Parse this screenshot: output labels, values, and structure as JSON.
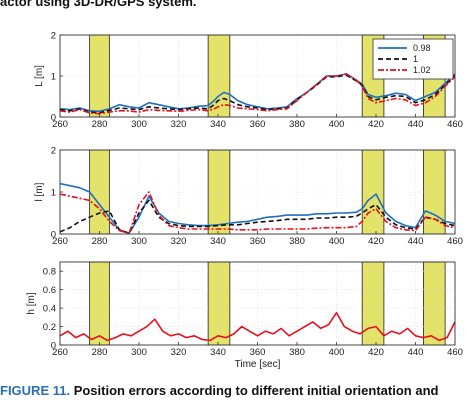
{
  "caption_top": "actor using 3D-DR/GPS system.",
  "caption_bottom": {
    "figure": "FIGURE 11.",
    "text": " Position errors according to different initial orientation and"
  },
  "colors": {
    "series_098": "#1f6fc0",
    "series_1": "#111111",
    "series_102": "#e8101a",
    "highlight_fill": "#e3e36a",
    "highlight_stroke": "#222222",
    "grid": "#d8d8d8"
  },
  "chart_data": [
    {
      "type": "line",
      "ylabel": "L [m]",
      "xlabel": "",
      "xlim": [
        260,
        460
      ],
      "ylim": [
        0,
        2
      ],
      "xticks": [
        "260",
        "280",
        "300",
        "320",
        "340",
        "360",
        "380",
        "400",
        "420",
        "440",
        "460"
      ],
      "yticks": [
        "0",
        "1",
        "2"
      ],
      "highlight_intervals": [
        [
          275,
          285
        ],
        [
          335,
          346
        ],
        [
          413,
          424
        ],
        [
          444,
          455
        ]
      ],
      "legend": {
        "position": "top-right",
        "entries": [
          "0.98",
          "1",
          "1.02"
        ]
      },
      "series": [
        {
          "name": "0.98",
          "style": "solid",
          "x": [
            260,
            265,
            270,
            275,
            280,
            285,
            290,
            295,
            300,
            305,
            310,
            315,
            320,
            325,
            330,
            335,
            338,
            340,
            343,
            346,
            350,
            355,
            360,
            365,
            370,
            375,
            380,
            385,
            390,
            395,
            400,
            405,
            410,
            413,
            416,
            420,
            425,
            430,
            435,
            440,
            445,
            450,
            455,
            460
          ],
          "y": [
            0.2,
            0.18,
            0.22,
            0.15,
            0.14,
            0.2,
            0.3,
            0.25,
            0.22,
            0.35,
            0.3,
            0.25,
            0.2,
            0.22,
            0.26,
            0.28,
            0.4,
            0.5,
            0.6,
            0.55,
            0.4,
            0.3,
            0.25,
            0.2,
            0.22,
            0.25,
            0.45,
            0.6,
            0.8,
            1.0,
            1.0,
            1.05,
            0.9,
            0.8,
            0.55,
            0.48,
            0.52,
            0.58,
            0.55,
            0.4,
            0.5,
            0.6,
            0.82,
            1.05
          ]
        },
        {
          "name": "1",
          "style": "dashed",
          "x": [
            260,
            265,
            270,
            275,
            280,
            285,
            290,
            295,
            300,
            305,
            310,
            315,
            320,
            325,
            330,
            335,
            338,
            340,
            343,
            346,
            350,
            355,
            360,
            365,
            370,
            375,
            380,
            385,
            390,
            395,
            400,
            405,
            410,
            413,
            416,
            420,
            425,
            430,
            435,
            440,
            445,
            450,
            455,
            460
          ],
          "y": [
            0.18,
            0.15,
            0.2,
            0.12,
            0.1,
            0.16,
            0.22,
            0.2,
            0.18,
            0.25,
            0.22,
            0.2,
            0.18,
            0.2,
            0.22,
            0.2,
            0.3,
            0.4,
            0.45,
            0.4,
            0.3,
            0.25,
            0.22,
            0.18,
            0.2,
            0.22,
            0.42,
            0.6,
            0.78,
            0.98,
            0.98,
            1.02,
            0.88,
            0.78,
            0.5,
            0.42,
            0.48,
            0.52,
            0.5,
            0.35,
            0.42,
            0.55,
            0.78,
            1.0
          ]
        },
        {
          "name": "1.02",
          "style": "dashdot",
          "x": [
            260,
            265,
            270,
            275,
            280,
            285,
            290,
            295,
            300,
            305,
            310,
            315,
            320,
            325,
            330,
            335,
            338,
            340,
            343,
            346,
            350,
            355,
            360,
            365,
            370,
            375,
            380,
            385,
            390,
            395,
            400,
            405,
            410,
            413,
            416,
            420,
            425,
            430,
            435,
            440,
            445,
            450,
            455,
            460
          ],
          "y": [
            0.15,
            0.12,
            0.18,
            0.1,
            0.08,
            0.12,
            0.15,
            0.15,
            0.12,
            0.18,
            0.16,
            0.15,
            0.14,
            0.16,
            0.18,
            0.15,
            0.2,
            0.25,
            0.3,
            0.28,
            0.22,
            0.2,
            0.18,
            0.15,
            0.18,
            0.2,
            0.4,
            0.6,
            0.8,
            1.0,
            1.0,
            1.05,
            0.9,
            0.75,
            0.45,
            0.35,
            0.4,
            0.45,
            0.42,
            0.28,
            0.35,
            0.5,
            0.75,
            0.98
          ]
        }
      ]
    },
    {
      "type": "line",
      "ylabel": "l [m]",
      "xlabel": "",
      "xlim": [
        260,
        460
      ],
      "ylim": [
        0,
        2
      ],
      "xticks": [
        "260",
        "280",
        "300",
        "320",
        "340",
        "360",
        "380",
        "400",
        "420",
        "440",
        "460"
      ],
      "yticks": [
        "0",
        "1",
        "2"
      ],
      "highlight_intervals": [
        [
          275,
          285
        ],
        [
          335,
          346
        ],
        [
          413,
          424
        ],
        [
          444,
          455
        ]
      ],
      "series": [
        {
          "name": "0.98",
          "style": "solid",
          "x": [
            260,
            265,
            270,
            275,
            280,
            285,
            290,
            295,
            300,
            305,
            310,
            315,
            320,
            325,
            330,
            335,
            340,
            345,
            350,
            355,
            360,
            365,
            370,
            375,
            380,
            385,
            390,
            395,
            400,
            405,
            410,
            413,
            416,
            420,
            425,
            430,
            435,
            440,
            445,
            450,
            455,
            460
          ],
          "y": [
            1.2,
            1.15,
            1.1,
            1.0,
            0.7,
            0.4,
            0.1,
            0.02,
            0.4,
            0.9,
            0.5,
            0.3,
            0.25,
            0.22,
            0.2,
            0.2,
            0.22,
            0.25,
            0.28,
            0.3,
            0.35,
            0.4,
            0.42,
            0.45,
            0.45,
            0.45,
            0.48,
            0.48,
            0.5,
            0.5,
            0.52,
            0.6,
            0.8,
            0.95,
            0.5,
            0.3,
            0.2,
            0.15,
            0.55,
            0.45,
            0.3,
            0.25
          ]
        },
        {
          "name": "1",
          "style": "dashed",
          "x": [
            260,
            265,
            270,
            275,
            280,
            285,
            290,
            295,
            300,
            305,
            310,
            315,
            320,
            325,
            330,
            335,
            340,
            345,
            350,
            355,
            360,
            365,
            370,
            375,
            380,
            385,
            390,
            395,
            400,
            405,
            410,
            413,
            416,
            420,
            425,
            430,
            435,
            440,
            445,
            450,
            455,
            460
          ],
          "y": [
            0.05,
            0.15,
            0.3,
            0.4,
            0.5,
            0.55,
            0.1,
            0.02,
            0.5,
            0.8,
            0.4,
            0.25,
            0.2,
            0.18,
            0.18,
            0.18,
            0.2,
            0.22,
            0.22,
            0.25,
            0.28,
            0.3,
            0.32,
            0.35,
            0.35,
            0.35,
            0.38,
            0.38,
            0.4,
            0.4,
            0.42,
            0.5,
            0.6,
            0.7,
            0.4,
            0.22,
            0.15,
            0.12,
            0.4,
            0.35,
            0.25,
            0.2
          ]
        },
        {
          "name": "1.02",
          "style": "dashdot",
          "x": [
            260,
            265,
            270,
            275,
            280,
            285,
            290,
            295,
            300,
            305,
            310,
            315,
            320,
            325,
            330,
            335,
            340,
            345,
            350,
            355,
            360,
            365,
            370,
            375,
            380,
            385,
            390,
            395,
            400,
            405,
            410,
            413,
            416,
            420,
            425,
            430,
            435,
            440,
            445,
            450,
            455,
            460
          ],
          "y": [
            0.95,
            0.9,
            0.85,
            0.8,
            0.6,
            0.3,
            0.08,
            0.02,
            0.7,
            1.0,
            0.45,
            0.2,
            0.15,
            0.12,
            0.12,
            0.12,
            0.12,
            0.12,
            0.1,
            0.1,
            0.1,
            0.12,
            0.12,
            0.12,
            0.12,
            0.12,
            0.14,
            0.15,
            0.15,
            0.15,
            0.18,
            0.3,
            0.5,
            0.6,
            0.3,
            0.15,
            0.1,
            0.08,
            0.4,
            0.35,
            0.2,
            0.15
          ]
        }
      ]
    },
    {
      "type": "line",
      "ylabel": "h [m]",
      "xlabel": "Time [sec]",
      "xlim": [
        260,
        460
      ],
      "ylim": [
        0,
        0.9
      ],
      "xticks": [
        "260",
        "280",
        "300",
        "320",
        "340",
        "360",
        "380",
        "400",
        "420",
        "440",
        "460"
      ],
      "yticks": [
        "0",
        "0.2",
        "0.4",
        "0.6",
        "0.8"
      ],
      "highlight_intervals": [
        [
          275,
          285
        ],
        [
          335,
          346
        ],
        [
          413,
          424
        ],
        [
          444,
          455
        ]
      ],
      "series": [
        {
          "name": "1.02",
          "style": "solid",
          "x": [
            260,
            264,
            268,
            272,
            276,
            280,
            284,
            288,
            292,
            296,
            300,
            304,
            308,
            312,
            316,
            320,
            324,
            328,
            332,
            336,
            340,
            344,
            348,
            352,
            356,
            360,
            364,
            368,
            372,
            376,
            380,
            384,
            388,
            392,
            396,
            400,
            404,
            408,
            412,
            416,
            420,
            424,
            428,
            432,
            436,
            440,
            444,
            448,
            452,
            456,
            460
          ],
          "y": [
            0.1,
            0.15,
            0.08,
            0.12,
            0.06,
            0.1,
            0.05,
            0.08,
            0.12,
            0.1,
            0.15,
            0.2,
            0.28,
            0.15,
            0.1,
            0.12,
            0.08,
            0.1,
            0.06,
            0.05,
            0.1,
            0.08,
            0.12,
            0.2,
            0.15,
            0.1,
            0.15,
            0.12,
            0.18,
            0.1,
            0.15,
            0.2,
            0.25,
            0.18,
            0.22,
            0.35,
            0.2,
            0.15,
            0.12,
            0.18,
            0.2,
            0.1,
            0.15,
            0.12,
            0.18,
            0.1,
            0.08,
            0.1,
            0.05,
            0.08,
            0.25
          ]
        }
      ]
    }
  ]
}
